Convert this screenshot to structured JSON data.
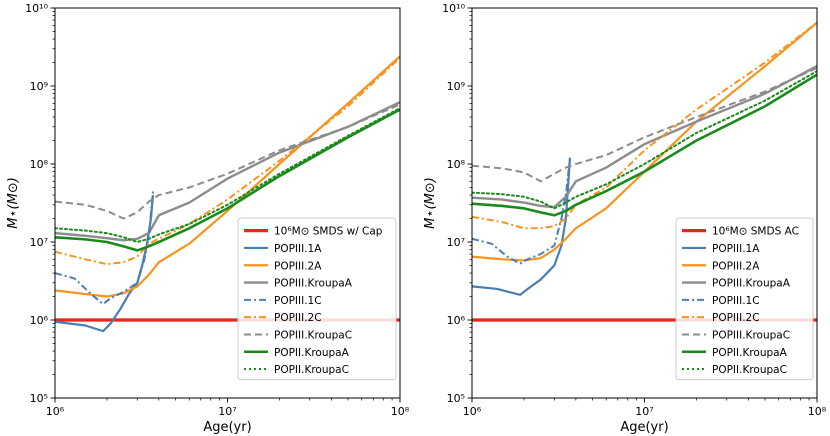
{
  "chart_data": [
    {
      "type": "line",
      "panel": "left",
      "xscale": "log",
      "yscale": "log",
      "xlim": [
        1000000,
        100000000
      ],
      "ylim": [
        100000,
        10000000000
      ],
      "xlabel": "Age(yr)",
      "ylabel": "M⋆(M⊙)",
      "xticks": [
        "10⁶",
        "10⁷",
        "10⁸"
      ],
      "yticks": [
        "10⁵",
        "10⁶",
        "10⁷",
        "10⁸",
        "10⁹",
        "10¹⁰"
      ],
      "legend_position": "lower-right",
      "series": [
        {
          "name": "10⁶M⊙ SMDS w/ Cap",
          "color": "#e8241e",
          "dash": "solid",
          "width": 3.2,
          "points": [
            [
              1000000,
              1000000
            ],
            [
              100000000,
              1000000
            ]
          ]
        },
        {
          "name": "POPIII.1A",
          "color": "#4a7eb4",
          "dash": "solid",
          "width": 2.2,
          "points": [
            [
              1000000,
              950000
            ],
            [
              1500000,
              850000
            ],
            [
              1900000,
              720000
            ],
            [
              2100000,
              900000
            ],
            [
              2400000,
              1400000
            ],
            [
              2700000,
              2200000
            ],
            [
              3000000,
              3000000
            ],
            [
              3200000,
              5000000
            ],
            [
              3400000,
              9000000
            ],
            [
              3600000,
              20000000
            ],
            [
              3700000,
              40000000
            ]
          ]
        },
        {
          "name": "POPIII.2A",
          "color": "#f7931e",
          "dash": "solid",
          "width": 2.2,
          "points": [
            [
              1000000,
              2400000
            ],
            [
              1500000,
              2150000
            ],
            [
              2000000,
              2000000
            ],
            [
              2500000,
              2200000
            ],
            [
              3000000,
              2700000
            ],
            [
              3500000,
              3800000
            ],
            [
              4000000,
              5500000
            ],
            [
              6000000,
              9500000
            ],
            [
              10000000,
              25000000
            ],
            [
              20000000,
              100000000
            ],
            [
              50000000,
              600000000
            ],
            [
              100000000,
              2400000000
            ]
          ]
        },
        {
          "name": "POPIII.KroupaA",
          "color": "#8c8c8c",
          "dash": "solid",
          "width": 2.4,
          "points": [
            [
              1000000,
              13000000
            ],
            [
              1500000,
              12000000
            ],
            [
              2000000,
              11200000
            ],
            [
              2500000,
              10500000
            ],
            [
              3000000,
              11000000
            ],
            [
              3500000,
              13000000
            ],
            [
              4000000,
              22000000
            ],
            [
              6000000,
              32000000
            ],
            [
              10000000,
              65000000
            ],
            [
              20000000,
              140000000
            ],
            [
              50000000,
              300000000
            ],
            [
              100000000,
              620000000
            ]
          ]
        },
        {
          "name": "POPIII.1C",
          "color": "#4a7eb4",
          "dash": "dashdot",
          "width": 2.0,
          "points": [
            [
              1000000,
              4000000
            ],
            [
              1300000,
              3400000
            ],
            [
              1600000,
              2200000
            ],
            [
              1900000,
              1600000
            ],
            [
              2100000,
              1900000
            ],
            [
              2500000,
              2300000
            ],
            [
              3000000,
              3000000
            ],
            [
              3300000,
              6000000
            ],
            [
              3500000,
              12000000
            ],
            [
              3700000,
              45000000
            ]
          ]
        },
        {
          "name": "POPIII.2C",
          "color": "#f7931e",
          "dash": "dashdot",
          "width": 2.0,
          "points": [
            [
              1000000,
              7500000
            ],
            [
              1500000,
              6000000
            ],
            [
              2000000,
              5200000
            ],
            [
              2500000,
              5500000
            ],
            [
              3000000,
              6500000
            ],
            [
              3500000,
              9500000
            ],
            [
              4000000,
              11000000
            ],
            [
              6000000,
              17000000
            ],
            [
              10000000,
              35000000
            ],
            [
              20000000,
              110000000
            ],
            [
              50000000,
              550000000
            ],
            [
              100000000,
              2300000000
            ]
          ]
        },
        {
          "name": "POPIII.KroupaC",
          "color": "#8c8c8c",
          "dash": "dashed",
          "width": 2.0,
          "points": [
            [
              1000000,
              33000000
            ],
            [
              1500000,
              30000000
            ],
            [
              2000000,
              25000000
            ],
            [
              2500000,
              20000000
            ],
            [
              3000000,
              24000000
            ],
            [
              3500000,
              33000000
            ],
            [
              4000000,
              40000000
            ],
            [
              6000000,
              50000000
            ],
            [
              10000000,
              75000000
            ],
            [
              20000000,
              150000000
            ],
            [
              50000000,
              300000000
            ],
            [
              100000000,
              580000000
            ]
          ]
        },
        {
          "name": "POPII.KroupaA",
          "color": "#1a8a1a",
          "dash": "solid",
          "width": 2.6,
          "points": [
            [
              1000000,
              11500000
            ],
            [
              1500000,
              10800000
            ],
            [
              2000000,
              10000000
            ],
            [
              2500000,
              8800000
            ],
            [
              3000000,
              7800000
            ],
            [
              3500000,
              8800000
            ],
            [
              4000000,
              10000000
            ],
            [
              6000000,
              15000000
            ],
            [
              10000000,
              27000000
            ],
            [
              20000000,
              70000000
            ],
            [
              50000000,
              220000000
            ],
            [
              100000000,
              500000000
            ]
          ]
        },
        {
          "name": "POPII.KroupaC",
          "color": "#1a8a1a",
          "dash": "dotted",
          "width": 2.0,
          "points": [
            [
              1000000,
              15000000
            ],
            [
              1500000,
              14000000
            ],
            [
              2000000,
              13000000
            ],
            [
              2500000,
              11500000
            ],
            [
              3000000,
              10000000
            ],
            [
              3500000,
              11000000
            ],
            [
              4000000,
              12500000
            ],
            [
              6000000,
              17000000
            ],
            [
              10000000,
              30000000
            ],
            [
              20000000,
              75000000
            ],
            [
              50000000,
              230000000
            ],
            [
              100000000,
              520000000
            ]
          ]
        }
      ]
    },
    {
      "type": "line",
      "panel": "right",
      "xscale": "log",
      "yscale": "log",
      "xlim": [
        1000000,
        100000000
      ],
      "ylim": [
        100000,
        10000000000
      ],
      "xlabel": "Age(yr)",
      "ylabel": "M⋆(M⊙)",
      "xticks": [
        "10⁶",
        "10⁷",
        "10⁸"
      ],
      "yticks": [
        "10⁵",
        "10⁶",
        "10⁷",
        "10⁸",
        "10⁹",
        "10¹⁰"
      ],
      "legend_position": "lower-right",
      "series": [
        {
          "name": "10⁶M⊙ SMDS AC",
          "color": "#e8241e",
          "dash": "solid",
          "width": 3.2,
          "points": [
            [
              1000000,
              1000000
            ],
            [
              100000000,
              1000000
            ]
          ]
        },
        {
          "name": "POPIII.1A",
          "color": "#4a7eb4",
          "dash": "solid",
          "width": 2.2,
          "points": [
            [
              1000000,
              2700000
            ],
            [
              1400000,
              2500000
            ],
            [
              1900000,
              2100000
            ],
            [
              2100000,
              2500000
            ],
            [
              2500000,
              3300000
            ],
            [
              3000000,
              5000000
            ],
            [
              3300000,
              9000000
            ],
            [
              3500000,
              20000000
            ],
            [
              3700000,
              120000000
            ]
          ]
        },
        {
          "name": "POPIII.2A",
          "color": "#f7931e",
          "dash": "solid",
          "width": 2.2,
          "points": [
            [
              1000000,
              6500000
            ],
            [
              1500000,
              6000000
            ],
            [
              2000000,
              5800000
            ],
            [
              2500000,
              6200000
            ],
            [
              3000000,
              8000000
            ],
            [
              3500000,
              11000000
            ],
            [
              4000000,
              15000000
            ],
            [
              6000000,
              27000000
            ],
            [
              10000000,
              80000000
            ],
            [
              20000000,
              350000000
            ],
            [
              50000000,
              1800000000
            ],
            [
              100000000,
              6500000000
            ]
          ]
        },
        {
          "name": "POPIII.KroupaA",
          "color": "#8c8c8c",
          "dash": "solid",
          "width": 2.4,
          "points": [
            [
              1000000,
              37000000
            ],
            [
              1500000,
              35000000
            ],
            [
              2000000,
              32000000
            ],
            [
              2500000,
              29000000
            ],
            [
              3000000,
              28000000
            ],
            [
              3500000,
              38000000
            ],
            [
              4000000,
              60000000
            ],
            [
              6000000,
              90000000
            ],
            [
              10000000,
              180000000
            ],
            [
              20000000,
              350000000
            ],
            [
              50000000,
              800000000
            ],
            [
              100000000,
              1800000000
            ]
          ]
        },
        {
          "name": "POPIII.1C",
          "color": "#4a7eb4",
          "dash": "dashdot",
          "width": 2.0,
          "points": [
            [
              1000000,
              11000000
            ],
            [
              1300000,
              9500000
            ],
            [
              1600000,
              6500000
            ],
            [
              1900000,
              5300000
            ],
            [
              2100000,
              6000000
            ],
            [
              2500000,
              7000000
            ],
            [
              3000000,
              9000000
            ],
            [
              3300000,
              20000000
            ],
            [
              3500000,
              40000000
            ],
            [
              3700000,
              120000000
            ]
          ]
        },
        {
          "name": "POPIII.2C",
          "color": "#f7931e",
          "dash": "dashdot",
          "width": 2.0,
          "points": [
            [
              1000000,
              21000000
            ],
            [
              1500000,
              18000000
            ],
            [
              2000000,
              15000000
            ],
            [
              2500000,
              15000000
            ],
            [
              3000000,
              16000000
            ],
            [
              3500000,
              20000000
            ],
            [
              4000000,
              30000000
            ],
            [
              6000000,
              50000000
            ],
            [
              10000000,
              150000000
            ],
            [
              20000000,
              500000000
            ],
            [
              50000000,
              2000000000
            ],
            [
              100000000,
              6500000000
            ]
          ]
        },
        {
          "name": "POPIII.KroupaC",
          "color": "#8c8c8c",
          "dash": "dashed",
          "width": 2.0,
          "points": [
            [
              1000000,
              95000000
            ],
            [
              1500000,
              88000000
            ],
            [
              2000000,
              78000000
            ],
            [
              2500000,
              60000000
            ],
            [
              3000000,
              75000000
            ],
            [
              3500000,
              90000000
            ],
            [
              4000000,
              100000000
            ],
            [
              6000000,
              130000000
            ],
            [
              10000000,
              220000000
            ],
            [
              20000000,
              400000000
            ],
            [
              50000000,
              850000000
            ],
            [
              100000000,
              1700000000
            ]
          ]
        },
        {
          "name": "POPII.KroupaA",
          "color": "#1a8a1a",
          "dash": "solid",
          "width": 2.6,
          "points": [
            [
              1000000,
              31000000
            ],
            [
              1500000,
              29000000
            ],
            [
              2000000,
              27000000
            ],
            [
              2500000,
              24000000
            ],
            [
              3000000,
              22000000
            ],
            [
              3500000,
              25000000
            ],
            [
              4000000,
              30000000
            ],
            [
              6000000,
              45000000
            ],
            [
              10000000,
              80000000
            ],
            [
              20000000,
              200000000
            ],
            [
              50000000,
              550000000
            ],
            [
              100000000,
              1400000000
            ]
          ]
        },
        {
          "name": "POPII.KroupaC",
          "color": "#1a8a1a",
          "dash": "dotted",
          "width": 2.0,
          "points": [
            [
              1000000,
              43000000
            ],
            [
              1500000,
              41000000
            ],
            [
              2000000,
              38000000
            ],
            [
              2500000,
              33000000
            ],
            [
              3000000,
              27000000
            ],
            [
              3500000,
              32000000
            ],
            [
              4000000,
              38000000
            ],
            [
              6000000,
              55000000
            ],
            [
              10000000,
              100000000
            ],
            [
              20000000,
              250000000
            ],
            [
              50000000,
              650000000
            ],
            [
              100000000,
              1550000000
            ]
          ]
        }
      ]
    }
  ]
}
